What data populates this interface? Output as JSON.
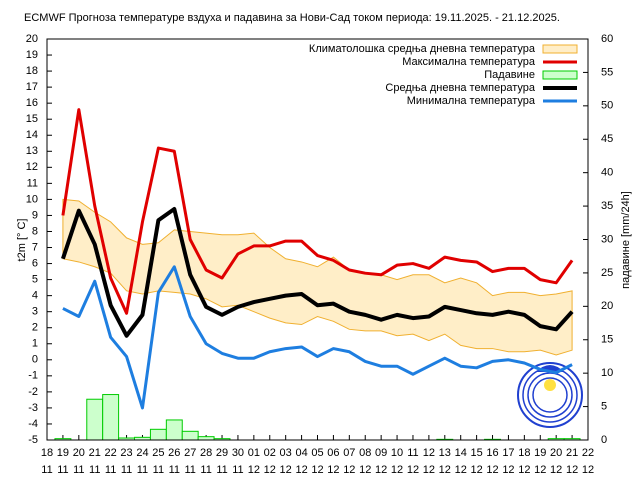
{
  "chart_data": {
    "type": "line",
    "title": "ECMWF Прогноза температуре вздуха и падавина за Нови-Сад током периода: 19.11.2025. - 21.12.2025.",
    "ylabel": "t2m [° C]",
    "y2label": "падавине [mm/24h]",
    "categories": [
      [
        "18",
        "11"
      ],
      [
        "19",
        "11"
      ],
      [
        "20",
        "11"
      ],
      [
        "21",
        "11"
      ],
      [
        "22",
        "11"
      ],
      [
        "23",
        "11"
      ],
      [
        "24",
        "11"
      ],
      [
        "25",
        "11"
      ],
      [
        "26",
        "11"
      ],
      [
        "27",
        "11"
      ],
      [
        "28",
        "11"
      ],
      [
        "29",
        "11"
      ],
      [
        "30",
        "11"
      ],
      [
        "01",
        "12"
      ],
      [
        "02",
        "12"
      ],
      [
        "03",
        "12"
      ],
      [
        "04",
        "12"
      ],
      [
        "05",
        "12"
      ],
      [
        "06",
        "12"
      ],
      [
        "07",
        "12"
      ],
      [
        "08",
        "12"
      ],
      [
        "09",
        "12"
      ],
      [
        "10",
        "12"
      ],
      [
        "11",
        "12"
      ],
      [
        "12",
        "12"
      ],
      [
        "13",
        "12"
      ],
      [
        "14",
        "12"
      ],
      [
        "15",
        "12"
      ],
      [
        "16",
        "12"
      ],
      [
        "17",
        "12"
      ],
      [
        "18",
        "12"
      ],
      [
        "19",
        "12"
      ],
      [
        "20",
        "12"
      ],
      [
        "21",
        "12"
      ],
      [
        "22",
        "12"
      ]
    ],
    "ylim": [
      -5,
      20
    ],
    "yticks": [
      -5,
      -4,
      -3,
      -2,
      -1,
      0,
      1,
      2,
      3,
      4,
      5,
      6,
      7,
      8,
      9,
      10,
      11,
      12,
      13,
      14,
      15,
      16,
      17,
      18,
      19,
      20
    ],
    "y2lim": [
      0,
      60
    ],
    "y2ticks": [
      0,
      5,
      10,
      15,
      20,
      25,
      30,
      35,
      40,
      45,
      50,
      55,
      60
    ],
    "series": [
      {
        "name": "Климатолошка средња дневна температура",
        "kind": "band",
        "color": "#f0b030",
        "fill": "#ffeec8",
        "upper": [
          null,
          10.0,
          9.9,
          9.2,
          8.6,
          7.6,
          7.2,
          7.3,
          8.1,
          8.0,
          7.9,
          7.8,
          7.8,
          7.9,
          7.0,
          6.3,
          6.1,
          5.8,
          6.4,
          5.6,
          5.4,
          5.3,
          5.0,
          5.3,
          5.3,
          4.8,
          5.1,
          4.8,
          4.0,
          4.2,
          4.2,
          4.0,
          4.1,
          4.3,
          null
        ],
        "lower": [
          null,
          6.3,
          6.1,
          5.8,
          5.4,
          4.3,
          4.1,
          4.3,
          4.2,
          4.1,
          3.8,
          3.3,
          3.4,
          3.0,
          2.6,
          2.3,
          2.2,
          2.7,
          2.4,
          1.9,
          1.8,
          1.8,
          1.5,
          1.6,
          1.2,
          1.6,
          0.9,
          0.7,
          0.7,
          0.5,
          0.5,
          0.6,
          0.3,
          0.6,
          null
        ]
      },
      {
        "name": "Максимална температура",
        "kind": "line",
        "color": "#e00000",
        "width": 3,
        "values": [
          null,
          9.0,
          15.6,
          9.6,
          5.1,
          2.9,
          8.6,
          13.2,
          13.0,
          7.5,
          5.6,
          5.1,
          6.6,
          7.1,
          7.1,
          7.4,
          7.4,
          6.5,
          6.2,
          5.6,
          5.4,
          5.3,
          5.9,
          6.0,
          5.7,
          6.4,
          6.2,
          6.1,
          5.5,
          5.7,
          5.7,
          5.0,
          4.8,
          6.2,
          null
        ]
      },
      {
        "name": "Падавине",
        "kind": "bar",
        "axis": "y2",
        "color": "#00cc00",
        "fill": "#ccffcc",
        "values": [
          null,
          0.2,
          0,
          6.1,
          6.8,
          0.3,
          0.4,
          1.6,
          3.0,
          1.3,
          0.5,
          0.2,
          0,
          0,
          0,
          0,
          0,
          0,
          0,
          0,
          0,
          0,
          0,
          0,
          0,
          0.1,
          0,
          0,
          0.1,
          0,
          0,
          0,
          0.2,
          0.2,
          null
        ]
      },
      {
        "name": "Средња дневна температура",
        "kind": "line",
        "color": "#000000",
        "width": 4,
        "values": [
          null,
          6.3,
          9.3,
          7.2,
          3.4,
          1.5,
          2.8,
          8.7,
          9.4,
          5.3,
          3.3,
          2.8,
          3.3,
          3.6,
          3.8,
          4.0,
          4.1,
          3.4,
          3.5,
          3.0,
          2.8,
          2.5,
          2.8,
          2.6,
          2.7,
          3.3,
          3.1,
          2.9,
          2.8,
          3.0,
          2.8,
          2.1,
          1.9,
          3.0,
          null
        ]
      },
      {
        "name": "Минимална температура",
        "kind": "line",
        "color": "#1e7ee0",
        "width": 3,
        "values": [
          null,
          3.2,
          2.7,
          4.9,
          1.4,
          0.2,
          -3.0,
          4.2,
          5.8,
          2.7,
          1.0,
          0.4,
          0.1,
          0.1,
          0.5,
          0.7,
          0.8,
          0.2,
          0.7,
          0.5,
          -0.1,
          -0.4,
          -0.4,
          -0.9,
          -0.4,
          0.1,
          -0.4,
          -0.5,
          -0.1,
          0.0,
          -0.2,
          -0.6,
          -0.8,
          -0.3,
          null
        ]
      }
    ]
  }
}
